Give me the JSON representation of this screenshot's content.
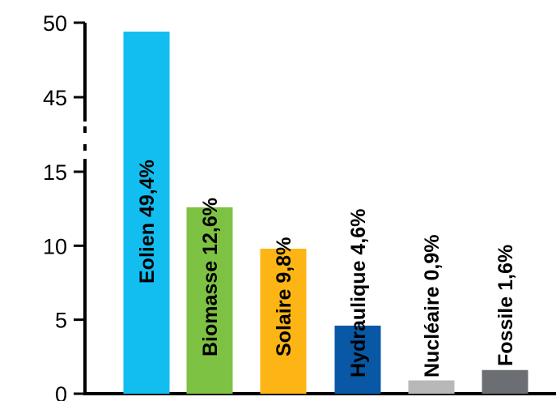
{
  "chart_data": {
    "type": "bar",
    "title": "",
    "xlabel": "",
    "ylabel": "",
    "axis_break": {
      "from": 15,
      "to": 45
    },
    "ylim": [
      0,
      50
    ],
    "y_ticks": [
      "0",
      "5",
      "10",
      "15",
      "45",
      "50"
    ],
    "categories": [
      "Eolien",
      "Biomasse",
      "Solaire",
      "Hydraulique",
      "Nucléaire",
      "Fossile"
    ],
    "values": [
      49.4,
      12.6,
      9.8,
      4.6,
      0.9,
      1.6
    ],
    "labels": [
      "Eolien 49,4%",
      "Biomasse  12,6%",
      "Solaire 9,8%",
      "Hydraulique 4,6%",
      "Nucléaire 0,9%",
      "Fossile 1,6%"
    ],
    "colors": [
      "#12BDEF",
      "#7DC242",
      "#FDB515",
      "#0858A6",
      "#B8B8B8",
      "#6B6E72"
    ],
    "grid": false,
    "legend": "none"
  }
}
